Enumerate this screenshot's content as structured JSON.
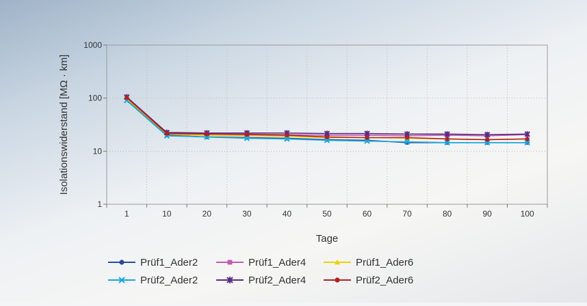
{
  "chart_data": {
    "type": "line",
    "title": "",
    "xlabel": "Tage",
    "ylabel": "Isolationswiderstand [MΩ · km]",
    "yscale": "log",
    "ylim": [
      1,
      1000
    ],
    "yticks": [
      "1",
      "10",
      "100",
      "1000"
    ],
    "categories": [
      "1",
      "10",
      "20",
      "30",
      "40",
      "50",
      "60",
      "70",
      "80",
      "90",
      "100"
    ],
    "grid": true,
    "legend_position": "bottom",
    "series": [
      {
        "name": "Prüf1_Ader2",
        "color": "#2b4a9c",
        "marker": "circle",
        "values": [
          95,
          20,
          18.5,
          18,
          17.5,
          16.5,
          16,
          14.5,
          14.5,
          14.5,
          14.5
        ]
      },
      {
        "name": "Prüf1_Ader4",
        "color": "#c05ab4",
        "marker": "square",
        "values": [
          100,
          22,
          21,
          21,
          20.5,
          20,
          20,
          19.5,
          20,
          19.5,
          20.5
        ]
      },
      {
        "name": "Prüf1_Ader6",
        "color": "#f0d000",
        "marker": "triangle",
        "values": [
          97,
          21,
          19.5,
          19.5,
          19,
          18,
          18,
          17.5,
          17,
          16.5,
          17
        ]
      },
      {
        "name": "Prüf2_Ader2",
        "color": "#18a8e0",
        "marker": "x",
        "values": [
          90,
          19.5,
          18.5,
          17.5,
          17,
          16,
          15.5,
          15,
          14.5,
          14.5,
          14.5
        ]
      },
      {
        "name": "Prüf2_Ader4",
        "color": "#5a2a80",
        "marker": "star",
        "values": [
          105,
          22.5,
          22,
          22,
          22,
          21.5,
          21.5,
          21,
          21,
          20.5,
          21
        ]
      },
      {
        "name": "Prüf2_Ader6",
        "color": "#b22222",
        "marker": "circle",
        "values": [
          102,
          21.5,
          21,
          20.5,
          20,
          18.5,
          18,
          18,
          17,
          16.5,
          17
        ]
      }
    ]
  }
}
